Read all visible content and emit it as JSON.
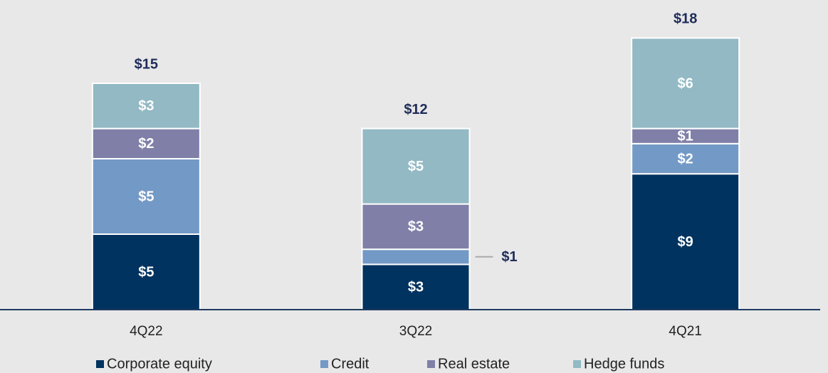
{
  "chart_data": {
    "type": "stacked_bar",
    "categories": [
      "4Q22",
      "3Q22",
      "4Q21"
    ],
    "series": [
      {
        "name": "Corporate equity",
        "color": "#003360",
        "values": [
          5,
          3,
          9
        ],
        "value_labels": [
          "$5",
          "$3",
          "$9"
        ]
      },
      {
        "name": "Credit",
        "color": "#7399c6",
        "values": [
          5,
          1,
          2
        ],
        "value_labels": [
          "$5",
          "$1",
          "$2"
        ]
      },
      {
        "name": "Real estate",
        "color": "#7f7fa8",
        "values": [
          2,
          3,
          1
        ],
        "value_labels": [
          "$2",
          "$3",
          "$1"
        ]
      },
      {
        "name": "Hedge funds",
        "color": "#92b9c4",
        "values": [
          3,
          5,
          6
        ],
        "value_labels": [
          "$3",
          "$5",
          "$6"
        ]
      }
    ],
    "totals": [
      15,
      12,
      18
    ],
    "total_labels": [
      "$15",
      "$12",
      "$18"
    ],
    "ylim": [
      0,
      20
    ]
  }
}
